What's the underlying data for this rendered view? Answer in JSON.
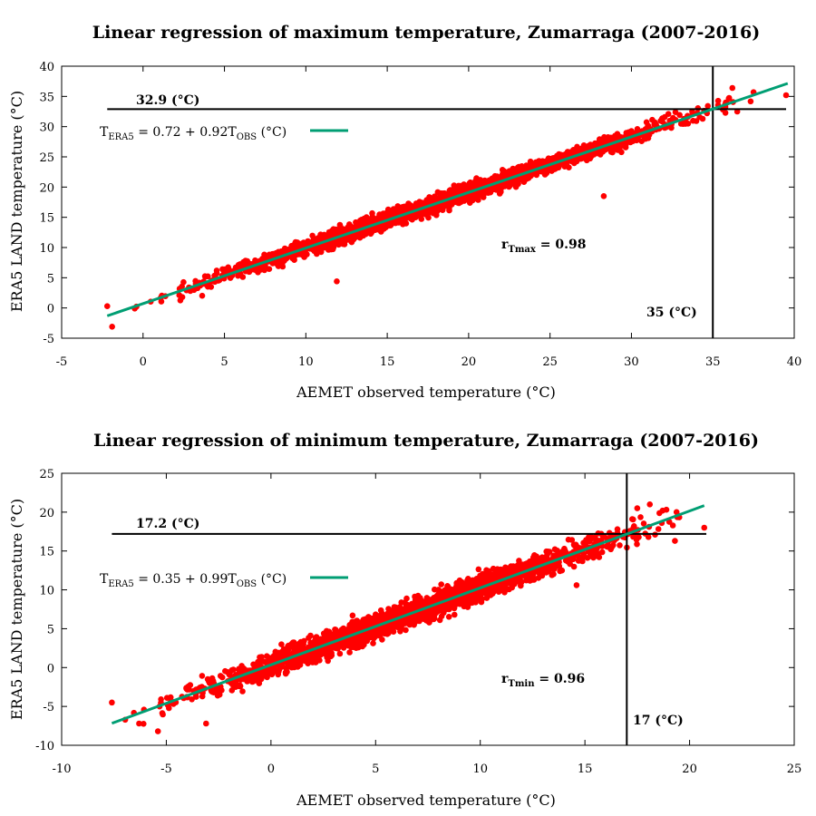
{
  "chart_data": [
    {
      "type": "scatter",
      "title": "Linear regression of maximum temperature, Zumarraga (2007-2016)",
      "xlabel": "AEMET observed temperature (°C)",
      "ylabel": "ERA5 LAND temperature (°C)",
      "xlim": [
        -5,
        40
      ],
      "ylim": [
        -5,
        40
      ],
      "xticks": [
        -5,
        0,
        5,
        10,
        15,
        20,
        25,
        30,
        35,
        40
      ],
      "yticks": [
        -5,
        0,
        5,
        10,
        15,
        20,
        25,
        30,
        35,
        40
      ],
      "grid": false,
      "point_color": "#ff0000",
      "fit_color": "#009e73",
      "fit": {
        "intercept": 0.72,
        "slope": 0.92,
        "x_range": [
          -2.2,
          39.6
        ]
      },
      "fit_legend": {
        "prefix": "T",
        "sub1": "ERA5",
        "mid": " = 0.72 + 0.92T",
        "sub2": "OBS",
        "suffix": " (°C)"
      },
      "cloud": {
        "x_range": [
          -2.2,
          39.6
        ],
        "spread": 1.3
      },
      "outliers": [
        [
          28.3,
          18.5
        ],
        [
          11.9,
          4.4
        ],
        [
          39.5,
          35.2
        ],
        [
          36.5,
          32.5
        ],
        [
          36.2,
          36.4
        ],
        [
          37.5,
          35.7
        ],
        [
          -2.2,
          0.3
        ],
        [
          -1.9,
          -3.1
        ],
        [
          22.5,
          21.5
        ],
        [
          31.5,
          29.5
        ]
      ],
      "hline": {
        "y": 32.9,
        "label": "32.9 (°C)",
        "x_from": -2.2,
        "x_to": 39.5
      },
      "vline": {
        "x": 35,
        "label": "35 (°C)"
      },
      "r_annotation": {
        "prefix": "r",
        "sub": "Tmax",
        "suffix": " = 0.98"
      }
    },
    {
      "type": "scatter",
      "title": "Linear regression of minimum temperature, Zumarraga (2007-2016)",
      "xlabel": "AEMET observed temperature (°C)",
      "ylabel": "ERA5 LAND temperature (°C)",
      "xlim": [
        -10,
        25
      ],
      "ylim": [
        -10,
        25
      ],
      "xticks": [
        -10,
        -5,
        0,
        5,
        10,
        15,
        20,
        25
      ],
      "yticks": [
        -10,
        -5,
        0,
        5,
        10,
        15,
        20,
        25
      ],
      "grid": false,
      "point_color": "#ff0000",
      "fit_color": "#009e73",
      "fit": {
        "intercept": 0.35,
        "slope": 0.99,
        "x_range": [
          -7.6,
          20.7
        ]
      },
      "fit_legend": {
        "prefix": "T",
        "sub1": "ERA5",
        "mid": " = 0.35 + 0.99T",
        "sub2": "OBS",
        "suffix": " (°C)"
      },
      "cloud": {
        "x_range": [
          -7.5,
          20.7
        ],
        "spread": 1.5
      },
      "outliers": [
        [
          -7.6,
          -4.5
        ],
        [
          -5.4,
          -8.2
        ],
        [
          -6.3,
          -7.2
        ],
        [
          -3.1,
          -7.2
        ],
        [
          20.7,
          18.0
        ],
        [
          18.1,
          21.0
        ],
        [
          19.3,
          16.3
        ],
        [
          12.5,
          11.3
        ],
        [
          14.6,
          10.6
        ],
        [
          17.5,
          20.5
        ],
        [
          3.9,
          6.7
        ]
      ],
      "hline": {
        "y": 17.2,
        "label": "17.2 (°C)",
        "x_from": -7.6,
        "x_to": 20.8
      },
      "vline": {
        "x": 17,
        "label": "17 (°C)"
      },
      "r_annotation": {
        "prefix": "r",
        "sub": "Tmin",
        "suffix": " = 0.96"
      }
    }
  ]
}
